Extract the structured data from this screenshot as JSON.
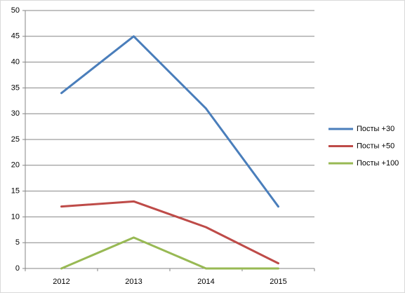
{
  "chart_data": {
    "type": "line",
    "categories": [
      "2012",
      "2013",
      "2014",
      "2015"
    ],
    "series": [
      {
        "name": "Посты +30",
        "color": "#4a7ebb",
        "values": [
          34,
          45,
          31,
          12
        ]
      },
      {
        "name": "Посты +50",
        "color": "#be4b48",
        "values": [
          12,
          13,
          8,
          1
        ]
      },
      {
        "name": "Посты +100",
        "color": "#98b954",
        "values": [
          0,
          6,
          0,
          0
        ]
      }
    ],
    "ylim": [
      0,
      50
    ],
    "yticks": [
      0,
      5,
      10,
      15,
      20,
      25,
      30,
      35,
      40,
      45,
      50
    ],
    "grid": true,
    "legend": "right"
  }
}
